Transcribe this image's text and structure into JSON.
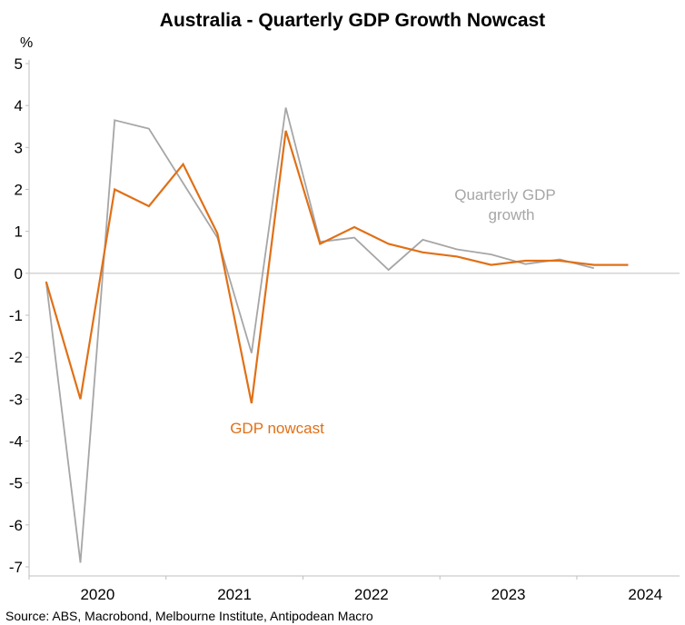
{
  "chart_data": {
    "type": "line",
    "title": "Australia - Quarterly GDP Growth Nowcast",
    "ylabel": "%",
    "xlabel": "",
    "ylim": [
      -7.5,
      5.3
    ],
    "yticks": [
      5,
      4,
      3,
      2,
      1,
      0,
      -1,
      -2,
      -3,
      -4,
      -5,
      -6,
      -7
    ],
    "x_tick_labels": [
      "2020",
      "2021",
      "2022",
      "2023",
      "2024"
    ],
    "x_tick_label_positions": [
      1.5,
      5.5,
      9.5,
      13.5,
      17.5
    ],
    "x_boundaries": [
      -0.5,
      3.5,
      7.5,
      11.5,
      15.5
    ],
    "x_range": [
      -0.5,
      18.5
    ],
    "series": [
      {
        "name": "Quarterly GDP growth",
        "color": "#a6a6a6",
        "x": [
          0,
          1,
          2,
          3,
          4,
          5,
          6,
          7,
          8,
          9,
          10,
          11,
          12,
          13,
          14,
          15,
          16
        ],
        "values": [
          -0.2,
          -6.9,
          3.65,
          3.45,
          2.15,
          0.85,
          -1.9,
          3.95,
          0.75,
          0.85,
          0.08,
          0.8,
          0.57,
          0.45,
          0.22,
          0.33,
          0.12
        ]
      },
      {
        "name": "GDP nowcast",
        "color": "#e07017",
        "x": [
          0,
          1,
          2,
          3,
          4,
          5,
          6,
          7,
          8,
          9,
          10,
          11,
          12,
          13,
          14,
          15,
          16,
          17
        ],
        "values": [
          -0.2,
          -3.0,
          2.0,
          1.6,
          2.6,
          0.95,
          -3.1,
          3.4,
          0.7,
          1.1,
          0.7,
          0.5,
          0.4,
          0.2,
          0.3,
          0.3,
          0.2,
          0.2
        ]
      }
    ],
    "annotations": [
      {
        "text": "Quarterly GDP",
        "series": 0
      },
      {
        "text": "growth",
        "series": 0
      },
      {
        "text": "GDP nowcast",
        "series": 1
      }
    ],
    "source": "Source: ABS, Macrobond, Melbourne Institute, Antipodean Macro"
  }
}
